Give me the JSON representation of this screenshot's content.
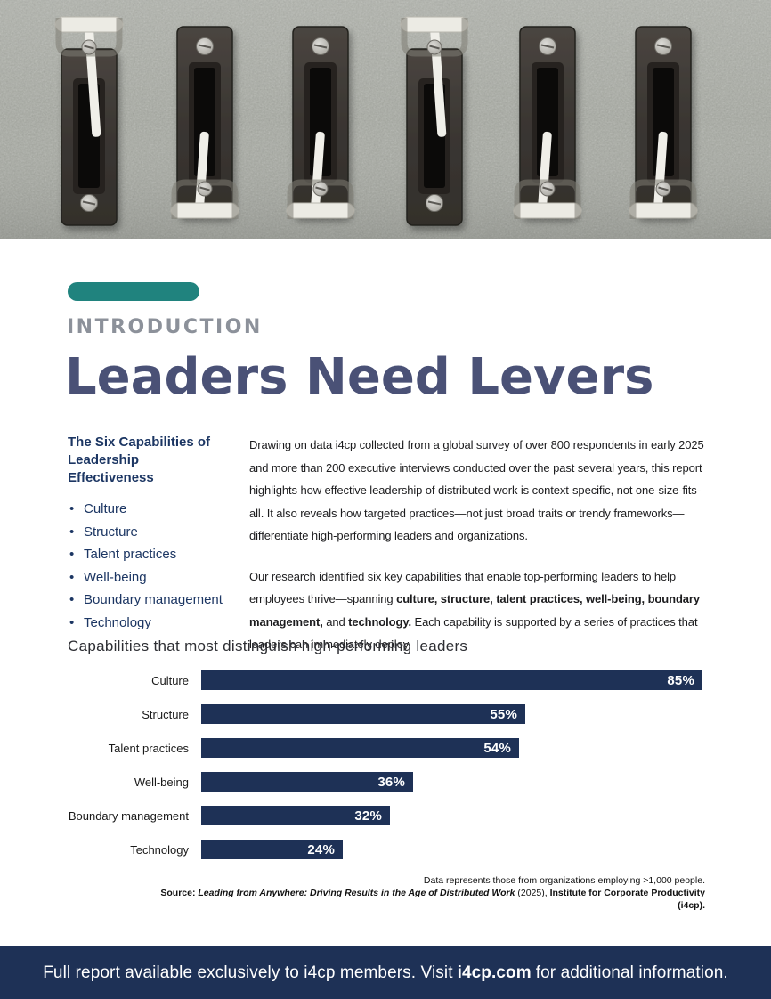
{
  "page": {
    "eyebrow": "INTRODUCTION",
    "title": "Leaders Need Levers"
  },
  "hero": {
    "subject": "six lever light switches on a concrete wall",
    "switch_states": [
      "up",
      "down",
      "down",
      "up",
      "down",
      "down"
    ]
  },
  "sidebar": {
    "heading": "The Six Capabilities of Leadership Effectiveness",
    "items": [
      "Culture",
      "Structure",
      "Talent practices",
      "Well-being",
      "Boundary management",
      "Technology"
    ]
  },
  "body": {
    "paragraph1": "Drawing on data i4cp collected from a global survey of over 800 respondents in early 2025 and more than 200 executive interviews conducted over the past several years, this report highlights how effective leadership of distributed work is context-specific, not one-size-fits-all. It also reveals how targeted practices—not just broad traits or trendy frameworks—differentiate high-performing leaders and organizations.",
    "paragraph2": {
      "lead": "Our research identified six key capabilities that enable top-performing leaders to help employees thrive—spanning ",
      "bold1": "culture, structure, talent practices, well-being, boundary management,",
      "mid": " and ",
      "bold2": "technology.",
      "tail": " Each capability is supported by a series of practices that leaders can immediately deploy."
    }
  },
  "chart_data": {
    "type": "bar",
    "orientation": "horizontal",
    "title": "Capabilities that most distinguish high-performing leaders",
    "categories": [
      "Culture",
      "Structure",
      "Talent practices",
      "Well-being",
      "Boundary management",
      "Technology"
    ],
    "values": [
      85,
      55,
      54,
      36,
      32,
      24
    ],
    "value_labels": [
      "85%",
      "55%",
      "54%",
      "36%",
      "32%",
      "24%"
    ],
    "xlim": [
      0,
      100
    ],
    "grid": false,
    "legend": "none",
    "bar_color": "#1e3156",
    "note": "Data represents those from organizations employing >1,000 people.",
    "source": {
      "label": "Source: ",
      "title": "Leading from Anywhere: Driving Results in the Age of Distributed Work",
      "mid": " (2025), ",
      "org": "Institute for Corporate Productivity (i4cp)."
    }
  },
  "footer": {
    "text_before": "Full report available exclusively to i4cp members. Visit",
    "link": "i4cp.com",
    "text_after": "for additional information."
  },
  "colors": {
    "teal": "#20837e",
    "navy": "#1e3156",
    "titleblue": "#4a5176",
    "navytext": "#1c3663",
    "eyebrow": "#8c919a",
    "wall": "#a7aaa2"
  }
}
